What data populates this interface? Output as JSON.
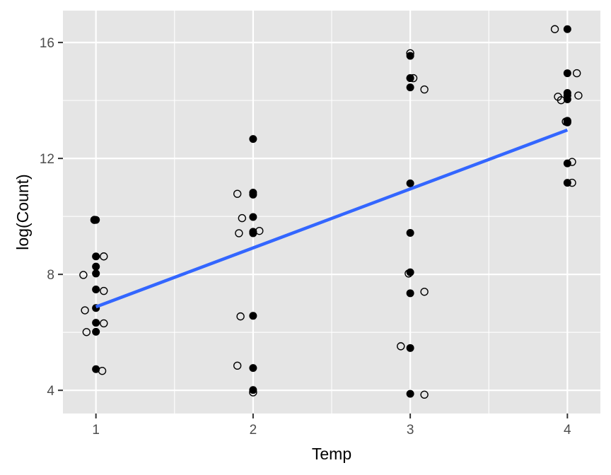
{
  "chart_data": {
    "type": "scatter",
    "xlabel": "Temp",
    "ylabel": "log(Count)",
    "xlim": [
      0.79,
      4.21
    ],
    "ylim": [
      3.2,
      17.1
    ],
    "x_ticks": [
      1,
      2,
      3,
      4
    ],
    "x_tick_labels": [
      "1",
      "2",
      "3",
      "4"
    ],
    "y_ticks": [
      4,
      8,
      12,
      16
    ],
    "y_tick_labels": [
      "4",
      "8",
      "12",
      "16"
    ],
    "grid": true,
    "panel_background": "#e5e5e5",
    "grid_color": "#ffffff",
    "trend_line": {
      "x": [
        1,
        4
      ],
      "y": [
        6.88,
        12.98
      ],
      "color": "#3366ff"
    },
    "series": [
      {
        "marker": "filled",
        "color": "#000000",
        "x": [
          0.99,
          1.0,
          1.0,
          1.0,
          1.0,
          1.0,
          1.0,
          1.0,
          1.0,
          1.0,
          2.0,
          2.0,
          2.0,
          2.0,
          2.0,
          2.0,
          2.0,
          2.0,
          2.0,
          3.0,
          3.0,
          3.0,
          3.0,
          3.0,
          3.0,
          3.0,
          3.0,
          3.0,
          3.0,
          4.0,
          4.0,
          4.0,
          4.0,
          4.0,
          4.0,
          4.0,
          4.0,
          4.0,
          4.0
        ],
        "y": [
          9.88,
          8.62,
          8.27,
          8.03,
          7.48,
          6.84,
          6.33,
          6.02,
          4.73,
          9.88,
          12.67,
          10.82,
          10.75,
          9.98,
          9.47,
          9.42,
          6.57,
          4.77,
          4.01,
          15.54,
          14.77,
          14.45,
          11.14,
          9.43,
          8.07,
          7.35,
          5.46,
          3.88,
          14.77,
          16.46,
          14.94,
          14.26,
          14.04,
          13.3,
          13.24,
          11.83,
          11.16,
          14.17,
          13.27
        ]
      },
      {
        "marker": "open",
        "color": "#000000",
        "x": [
          0.99,
          1.05,
          0.92,
          1.05,
          0.93,
          1.05,
          0.94,
          1.04,
          1.9,
          1.93,
          1.91,
          2.04,
          1.92,
          1.9,
          2.0,
          3.0,
          3.02,
          3.09,
          2.99,
          3.09,
          2.94,
          3.09,
          3.92,
          4.06,
          4.07,
          3.94,
          3.96,
          3.99,
          4.03,
          4.03
        ],
        "y": [
          9.88,
          8.62,
          7.98,
          7.43,
          6.76,
          6.31,
          6.01,
          4.67,
          10.78,
          9.94,
          9.42,
          9.5,
          6.55,
          4.85,
          3.93,
          15.63,
          14.77,
          14.38,
          8.03,
          7.4,
          5.52,
          3.85,
          16.46,
          14.94,
          14.17,
          14.13,
          14.01,
          13.27,
          11.88,
          11.16
        ]
      }
    ]
  }
}
